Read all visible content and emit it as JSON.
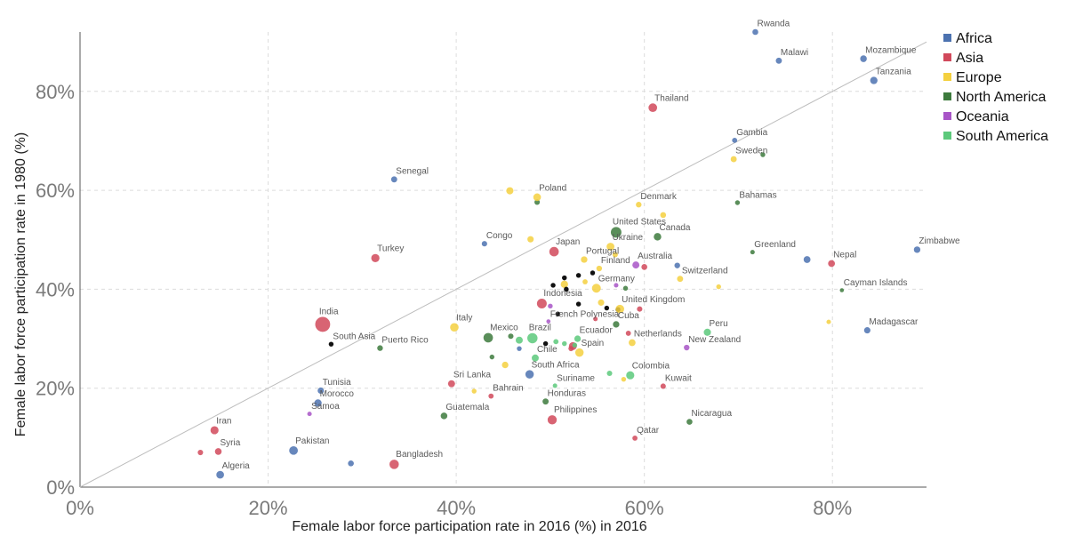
{
  "chart_data": {
    "type": "scatter",
    "xlabel": "Female labor force participation rate in 2016 (%) in 2016",
    "ylabel": "Female labor force participation rate in 1980 (%)",
    "xlim": [
      0,
      90
    ],
    "ylim": [
      0,
      92
    ],
    "x_ticks": [
      0,
      20,
      40,
      60,
      80
    ],
    "y_ticks": [
      0,
      20,
      40,
      60,
      80
    ],
    "tick_format": "percent",
    "grid": true,
    "legend_position": "top-right",
    "reference_line": "y = x",
    "groups": [
      {
        "name": "Africa",
        "color": "#4c72b0"
      },
      {
        "name": "Asia",
        "color": "#d1495b"
      },
      {
        "name": "Europe",
        "color": "#f4d03f"
      },
      {
        "name": "North America",
        "color": "#3d7a3d"
      },
      {
        "name": "Oceania",
        "color": "#a855c7"
      },
      {
        "name": "South America",
        "color": "#5cc97b"
      }
    ],
    "points": [
      {
        "label": "Rwanda",
        "x": 71.8,
        "y": 92.0,
        "group": "Africa",
        "size": 0.8
      },
      {
        "label": "Malawi",
        "x": 74.3,
        "y": 86.2,
        "group": "Africa",
        "size": 0.9
      },
      {
        "label": "Mozambique",
        "x": 83.3,
        "y": 86.6,
        "group": "Africa",
        "size": 1.2
      },
      {
        "label": "Tanzania",
        "x": 84.4,
        "y": 82.2,
        "group": "Africa",
        "size": 1.6
      },
      {
        "label": "Thailand",
        "x": 60.9,
        "y": 76.7,
        "group": "Asia",
        "size": 2.5
      },
      {
        "label": "Gambia",
        "x": 69.6,
        "y": 70.1,
        "group": "Africa",
        "size": 0.5
      },
      {
        "label": "Sweden",
        "x": 69.5,
        "y": 66.3,
        "group": "Europe",
        "size": 0.9
      },
      {
        "label": "Senegal",
        "x": 33.4,
        "y": 62.2,
        "group": "Africa",
        "size": 0.9
      },
      {
        "label": "Poland",
        "x": 48.6,
        "y": 58.6,
        "group": "Europe",
        "size": 1.8
      },
      {
        "label": "Denmark",
        "x": 59.4,
        "y": 57.1,
        "group": "Europe",
        "size": 0.7
      },
      {
        "label": "Bahamas",
        "x": 69.9,
        "y": 57.5,
        "group": "North America",
        "size": 0.4
      },
      {
        "label": "United States",
        "x": 57.0,
        "y": 51.5,
        "group": "North America",
        "size": 4.3
      },
      {
        "label": "Canada",
        "x": 61.4,
        "y": 50.6,
        "group": "North America",
        "size": 1.7
      },
      {
        "label": "Congo",
        "x": 43.0,
        "y": 49.2,
        "group": "Africa",
        "size": 0.6
      },
      {
        "label": "Ukraine",
        "x": 56.4,
        "y": 48.6,
        "group": "Europe",
        "size": 1.9
      },
      {
        "label": "Japan",
        "x": 50.4,
        "y": 47.6,
        "group": "Asia",
        "size": 3.2
      },
      {
        "label": "Zimbabwe",
        "x": 89.0,
        "y": 48.0,
        "group": "Africa",
        "size": 1.1
      },
      {
        "label": "Greenland",
        "x": 71.5,
        "y": 47.5,
        "group": "North America",
        "size": 0.3
      },
      {
        "label": "Turkey",
        "x": 31.4,
        "y": 46.3,
        "group": "Asia",
        "size": 2.2
      },
      {
        "label": "Portugal",
        "x": 53.6,
        "y": 46.0,
        "group": "Europe",
        "size": 1.1
      },
      {
        "label": "Nepal",
        "x": 79.9,
        "y": 45.2,
        "group": "Asia",
        "size": 1.3
      },
      {
        "label": "Australia",
        "x": 59.1,
        "y": 44.9,
        "group": "Oceania",
        "size": 1.4
      },
      {
        "label": "Finland",
        "x": 55.2,
        "y": 44.2,
        "group": "Europe",
        "size": 0.7
      },
      {
        "label": "Switzerland",
        "x": 63.8,
        "y": 42.1,
        "group": "Europe",
        "size": 0.9
      },
      {
        "label": "Cayman Islands",
        "x": 81.0,
        "y": 39.8,
        "group": "North America",
        "size": 0.2
      },
      {
        "label": "Germany",
        "x": 54.9,
        "y": 40.2,
        "group": "Europe",
        "size": 2.7
      },
      {
        "label": "Indonesia",
        "x": 49.1,
        "y": 37.1,
        "group": "Asia",
        "size": 3.5
      },
      {
        "label": "United Kingdom",
        "x": 57.4,
        "y": 36.0,
        "group": "Europe",
        "size": 2.4
      },
      {
        "label": "India",
        "x": 25.8,
        "y": 32.9,
        "group": "Asia",
        "size": 10.0
      },
      {
        "label": "French Polynesia",
        "x": 49.8,
        "y": 33.5,
        "group": "Oceania",
        "size": 0.2
      },
      {
        "label": "Cuba",
        "x": 57.0,
        "y": 32.9,
        "group": "North America",
        "size": 1.1
      },
      {
        "label": "Italy",
        "x": 39.8,
        "y": 32.3,
        "group": "Europe",
        "size": 2.4
      },
      {
        "label": "Peru",
        "x": 66.7,
        "y": 31.3,
        "group": "South America",
        "size": 1.5
      },
      {
        "label": "Madagascar",
        "x": 83.7,
        "y": 31.7,
        "group": "Africa",
        "size": 1.0
      },
      {
        "label": "Mexico",
        "x": 43.4,
        "y": 30.2,
        "group": "North America",
        "size": 3.2
      },
      {
        "label": "Brazil",
        "x": 48.1,
        "y": 30.1,
        "group": "South America",
        "size": 3.9
      },
      {
        "label": "Ecuador",
        "x": 52.9,
        "y": 30.0,
        "group": "South America",
        "size": 1.1
      },
      {
        "label": "Netherlands",
        "x": 58.7,
        "y": 29.2,
        "group": "Europe",
        "size": 1.3
      },
      {
        "label": "New Zealand",
        "x": 64.5,
        "y": 28.2,
        "group": "Oceania",
        "size": 0.7
      },
      {
        "label": "South Asia",
        "x": 26.7,
        "y": 28.9,
        "group": "",
        "size": 0.4
      },
      {
        "label": "Puerto Rico",
        "x": 31.9,
        "y": 28.1,
        "group": "North America",
        "size": 0.7
      },
      {
        "label": "Spain",
        "x": 53.1,
        "y": 27.2,
        "group": "Europe",
        "size": 2.3
      },
      {
        "label": "Chile",
        "x": 48.4,
        "y": 26.1,
        "group": "South America",
        "size": 1.4
      },
      {
        "label": "South Africa",
        "x": 47.8,
        "y": 22.8,
        "group": "Africa",
        "size": 2.3
      },
      {
        "label": "Colombia",
        "x": 58.5,
        "y": 22.6,
        "group": "South America",
        "size": 2.1
      },
      {
        "label": "Kuwait",
        "x": 62.0,
        "y": 20.4,
        "group": "Asia",
        "size": 0.6
      },
      {
        "label": "Sri Lanka",
        "x": 39.5,
        "y": 20.9,
        "group": "Asia",
        "size": 1.4
      },
      {
        "label": "Suriname",
        "x": 50.5,
        "y": 20.5,
        "group": "South America",
        "size": 0.3
      },
      {
        "label": "Tunisia",
        "x": 25.6,
        "y": 19.5,
        "group": "Africa",
        "size": 1.0
      },
      {
        "label": "Bahrain",
        "x": 43.7,
        "y": 18.4,
        "group": "Asia",
        "size": 0.5
      },
      {
        "label": "Morocco",
        "x": 25.3,
        "y": 17.0,
        "group": "Africa",
        "size": 1.6
      },
      {
        "label": "Honduras",
        "x": 49.5,
        "y": 17.3,
        "group": "North America",
        "size": 0.9
      },
      {
        "label": "Samoa",
        "x": 24.4,
        "y": 14.8,
        "group": "Oceania",
        "size": 0.3
      },
      {
        "label": "Guatemala",
        "x": 38.7,
        "y": 14.4,
        "group": "North America",
        "size": 1.2
      },
      {
        "label": "Nicaragua",
        "x": 64.8,
        "y": 13.2,
        "group": "North America",
        "size": 0.8
      },
      {
        "label": "Philippines",
        "x": 50.2,
        "y": 13.6,
        "group": "Asia",
        "size": 2.9
      },
      {
        "label": "Iran",
        "x": 14.3,
        "y": 11.5,
        "group": "Asia",
        "size": 2.1
      },
      {
        "label": "Qatar",
        "x": 59.0,
        "y": 9.9,
        "group": "Asia",
        "size": 0.5
      },
      {
        "label": "Syria",
        "x": 14.7,
        "y": 7.2,
        "group": "Asia",
        "size": 1.2
      },
      {
        "label": "Pakistan",
        "x": 22.7,
        "y": 7.4,
        "group": "Africa",
        "size": 2.5
      },
      {
        "label": "Bangladesh",
        "x": 33.4,
        "y": 4.6,
        "group": "Asia",
        "size": 3.1
      },
      {
        "label": "Algeria",
        "x": 14.9,
        "y": 2.5,
        "group": "Africa",
        "size": 1.8
      }
    ],
    "unlabeled_points": [
      {
        "x": 72.6,
        "y": 67.2,
        "group": "North America",
        "size": 0.4
      },
      {
        "x": 45.7,
        "y": 59.9,
        "group": "Europe",
        "size": 1.5
      },
      {
        "x": 48.6,
        "y": 57.6,
        "group": "North America",
        "size": 0.6
      },
      {
        "x": 62.0,
        "y": 55.0,
        "group": "Europe",
        "size": 0.8
      },
      {
        "x": 47.9,
        "y": 50.1,
        "group": "Europe",
        "size": 1.0
      },
      {
        "x": 56.9,
        "y": 47.0,
        "group": "Europe",
        "size": 0.6
      },
      {
        "x": 60.0,
        "y": 44.5,
        "group": "Asia",
        "size": 0.8
      },
      {
        "x": 63.5,
        "y": 44.8,
        "group": "Africa",
        "size": 0.7
      },
      {
        "x": 77.3,
        "y": 46.0,
        "group": "Africa",
        "size": 1.3
      },
      {
        "x": 53.7,
        "y": 41.5,
        "group": "Europe",
        "size": 0.5
      },
      {
        "x": 51.5,
        "y": 42.3,
        "group": "",
        "size": 0.4
      },
      {
        "x": 53.0,
        "y": 42.8,
        "group": "",
        "size": 0.4
      },
      {
        "x": 54.5,
        "y": 43.3,
        "group": "",
        "size": 0.4
      },
      {
        "x": 51.5,
        "y": 41.0,
        "group": "Europe",
        "size": 1.6
      },
      {
        "x": 57.0,
        "y": 40.8,
        "group": "Oceania",
        "size": 0.3
      },
      {
        "x": 58.0,
        "y": 40.2,
        "group": "North America",
        "size": 0.4
      },
      {
        "x": 67.9,
        "y": 40.5,
        "group": "Europe",
        "size": 0.4
      },
      {
        "x": 50.3,
        "y": 40.8,
        "group": "",
        "size": 0.4
      },
      {
        "x": 51.7,
        "y": 40.0,
        "group": "",
        "size": 0.4
      },
      {
        "x": 50.0,
        "y": 36.6,
        "group": "Oceania",
        "size": 0.4
      },
      {
        "x": 56.0,
        "y": 36.2,
        "group": "",
        "size": 0.4
      },
      {
        "x": 57.2,
        "y": 35.9,
        "group": "",
        "size": 0.4
      },
      {
        "x": 59.5,
        "y": 36.0,
        "group": "Asia",
        "size": 0.6
      },
      {
        "x": 50.8,
        "y": 35.0,
        "group": "",
        "size": 0.4
      },
      {
        "x": 55.4,
        "y": 37.3,
        "group": "Europe",
        "size": 1.0
      },
      {
        "x": 53.0,
        "y": 37.0,
        "group": "",
        "size": 0.4
      },
      {
        "x": 54.8,
        "y": 34.0,
        "group": "Asia",
        "size": 0.3
      },
      {
        "x": 79.6,
        "y": 33.4,
        "group": "Europe",
        "size": 0.3
      },
      {
        "x": 45.8,
        "y": 30.5,
        "group": "North America",
        "size": 0.6
      },
      {
        "x": 46.7,
        "y": 29.7,
        "group": "South America",
        "size": 1.4
      },
      {
        "x": 50.6,
        "y": 29.4,
        "group": "South America",
        "size": 0.5
      },
      {
        "x": 51.5,
        "y": 29.0,
        "group": "South America",
        "size": 0.4
      },
      {
        "x": 52.6,
        "y": 28.7,
        "group": "South America",
        "size": 0.4
      },
      {
        "x": 58.3,
        "y": 31.1,
        "group": "Asia",
        "size": 0.5
      },
      {
        "x": 49.5,
        "y": 29.0,
        "group": "",
        "size": 0.4
      },
      {
        "x": 52.2,
        "y": 28.0,
        "group": "Asia",
        "size": 0.5
      },
      {
        "x": 52.4,
        "y": 28.5,
        "group": "Asia",
        "size": 2.0
      },
      {
        "x": 46.7,
        "y": 28.0,
        "group": "Africa",
        "size": 0.4
      },
      {
        "x": 43.8,
        "y": 26.3,
        "group": "North America",
        "size": 0.4
      },
      {
        "x": 45.2,
        "y": 24.7,
        "group": "Europe",
        "size": 1.1
      },
      {
        "x": 56.3,
        "y": 23.0,
        "group": "South America",
        "size": 0.6
      },
      {
        "x": 57.8,
        "y": 21.8,
        "group": "Europe",
        "size": 0.4
      },
      {
        "x": 41.9,
        "y": 19.4,
        "group": "Europe",
        "size": 0.4
      },
      {
        "x": 28.8,
        "y": 4.8,
        "group": "Africa",
        "size": 0.8
      },
      {
        "x": 12.8,
        "y": 7.0,
        "group": "Asia",
        "size": 0.6
      }
    ]
  }
}
